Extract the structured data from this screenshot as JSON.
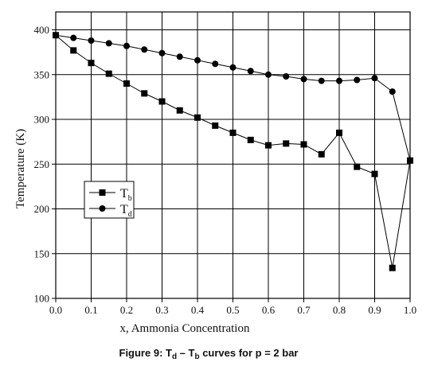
{
  "chart_data": {
    "type": "line",
    "caption": {
      "prefix": "Figure 9: T",
      "sub1": "d",
      "mid": " – T",
      "sub2": "b",
      "suffix": " curves for p = 2 bar"
    },
    "xlabel": "x, Ammonia Concentration",
    "ylabel": "Temperature (K)",
    "xlim": [
      0.0,
      1.0
    ],
    "ylim": [
      100,
      420
    ],
    "x_ticks": [
      "0.0",
      "0.1",
      "0.2",
      "0.3",
      "0.4",
      "0.5",
      "0.6",
      "0.7",
      "0.8",
      "0.9",
      "1.0"
    ],
    "y_ticks": [
      "100",
      "150",
      "200",
      "250",
      "300",
      "350",
      "400"
    ],
    "grid": true,
    "legend_position": "left",
    "series": [
      {
        "name": "T_b",
        "label_main": "T",
        "label_sub": "b",
        "marker": "square",
        "x": [
          0.0,
          0.05,
          0.1,
          0.15,
          0.2,
          0.25,
          0.3,
          0.35,
          0.4,
          0.45,
          0.5,
          0.55,
          0.6,
          0.65,
          0.7,
          0.75,
          0.8,
          0.85,
          0.9,
          0.95,
          1.0
        ],
        "y": [
          394,
          377,
          363,
          351,
          340,
          329,
          320,
          310,
          302,
          293,
          285,
          277,
          271,
          273,
          272,
          261,
          285,
          247,
          239,
          134,
          254
        ]
      },
      {
        "name": "T_d",
        "label_main": "T",
        "label_sub": "d",
        "marker": "circle",
        "x": [
          0.0,
          0.05,
          0.1,
          0.15,
          0.2,
          0.25,
          0.3,
          0.35,
          0.4,
          0.45,
          0.5,
          0.55,
          0.6,
          0.65,
          0.7,
          0.75,
          0.8,
          0.85,
          0.9,
          0.95,
          1.0
        ],
        "y": [
          394,
          391,
          388,
          385,
          382,
          378,
          374,
          370,
          366,
          362,
          358,
          354,
          350,
          348,
          345,
          343,
          343,
          344,
          346,
          331,
          254
        ]
      }
    ]
  }
}
